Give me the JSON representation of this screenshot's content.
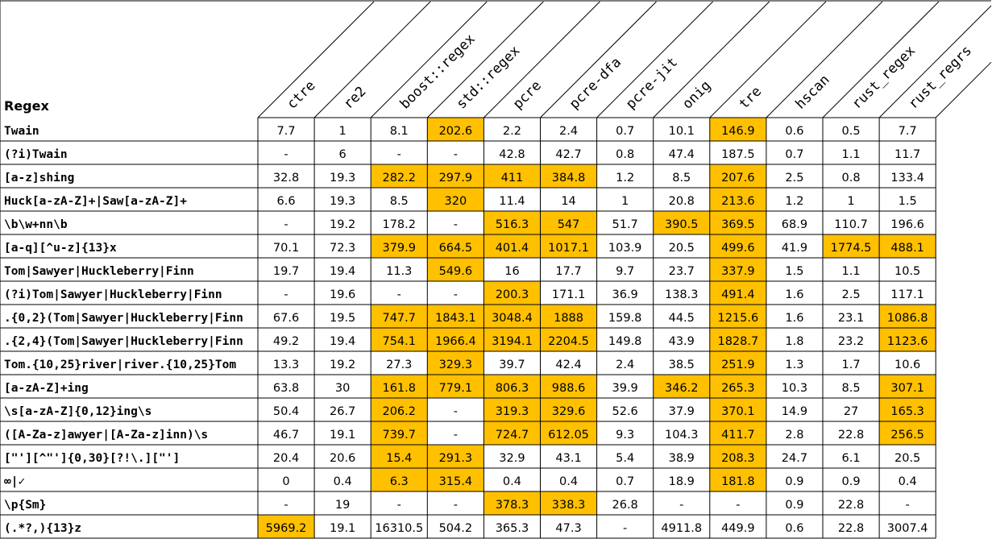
{
  "table": {
    "corner_label": "Regex",
    "columns": [
      "ctre",
      "re2",
      "boost::regex",
      "std::regex",
      "pcre",
      "pcre-dfa",
      "pcre-jit",
      "onig",
      "tre",
      "hscan",
      "rust_regex",
      "rust_regrs"
    ],
    "highlight_color": "#FFC000",
    "rows": [
      {
        "regex": "Twain",
        "values": [
          "7.7",
          "1",
          "8.1",
          "202.6",
          "2.2",
          "2.4",
          "0.7",
          "10.1",
          "146.9",
          "0.6",
          "0.5",
          "7.7"
        ],
        "highlight": [
          3,
          8
        ]
      },
      {
        "regex": "(?i)Twain",
        "values": [
          "-",
          "6",
          "-",
          "-",
          "42.8",
          "42.7",
          "0.8",
          "47.4",
          "187.5",
          "0.7",
          "1.1",
          "11.7"
        ],
        "highlight": []
      },
      {
        "regex": "[a-z]shing",
        "values": [
          "32.8",
          "19.3",
          "282.2",
          "297.9",
          "411",
          "384.8",
          "1.2",
          "8.5",
          "207.6",
          "2.5",
          "0.8",
          "133.4"
        ],
        "highlight": [
          2,
          3,
          4,
          5,
          8
        ]
      },
      {
        "regex": "Huck[a-zA-Z]+|Saw[a-zA-Z]+",
        "values": [
          "6.6",
          "19.3",
          "8.5",
          "320",
          "11.4",
          "14",
          "1",
          "20.8",
          "213.6",
          "1.2",
          "1",
          "1.5"
        ],
        "highlight": [
          3,
          8
        ]
      },
      {
        "regex": "\\b\\w+nn\\b",
        "values": [
          "-",
          "19.2",
          "178.2",
          "-",
          "516.3",
          "547",
          "51.7",
          "390.5",
          "369.5",
          "68.9",
          "110.7",
          "196.6"
        ],
        "highlight": [
          4,
          5,
          7,
          8
        ]
      },
      {
        "regex": "[a-q][^u-z]{13}x",
        "values": [
          "70.1",
          "72.3",
          "379.9",
          "664.5",
          "401.4",
          "1017.1",
          "103.9",
          "20.5",
          "499.6",
          "41.9",
          "1774.5",
          "488.1"
        ],
        "highlight": [
          2,
          3,
          4,
          5,
          8,
          10,
          11
        ]
      },
      {
        "regex": "Tom|Sawyer|Huckleberry|Finn",
        "values": [
          "19.7",
          "19.4",
          "11.3",
          "549.6",
          "16",
          "17.7",
          "9.7",
          "23.7",
          "337.9",
          "1.5",
          "1.1",
          "10.5"
        ],
        "highlight": [
          3,
          8
        ]
      },
      {
        "regex": "(?i)Tom|Sawyer|Huckleberry|Finn",
        "values": [
          "-",
          "19.6",
          "-",
          "-",
          "200.3",
          "171.1",
          "36.9",
          "138.3",
          "491.4",
          "1.6",
          "2.5",
          "117.1"
        ],
        "highlight": [
          4,
          8
        ]
      },
      {
        "regex": ".{0,2}(Tom|Sawyer|Huckleberry|Finn",
        "values": [
          "67.6",
          "19.5",
          "747.7",
          "1843.1",
          "3048.4",
          "1888",
          "159.8",
          "44.5",
          "1215.6",
          "1.6",
          "23.1",
          "1086.8"
        ],
        "highlight": [
          2,
          3,
          4,
          5,
          8,
          11
        ]
      },
      {
        "regex": ".{2,4}(Tom|Sawyer|Huckleberry|Finn",
        "values": [
          "49.2",
          "19.4",
          "754.1",
          "1966.4",
          "3194.1",
          "2204.5",
          "149.8",
          "43.9",
          "1828.7",
          "1.8",
          "23.2",
          "1123.6"
        ],
        "highlight": [
          2,
          3,
          4,
          5,
          8,
          11
        ]
      },
      {
        "regex": "Tom.{10,25}river|river.{10,25}Tom",
        "values": [
          "13.3",
          "19.2",
          "27.3",
          "329.3",
          "39.7",
          "42.4",
          "2.4",
          "38.5",
          "251.9",
          "1.3",
          "1.7",
          "10.6"
        ],
        "highlight": [
          3,
          8
        ]
      },
      {
        "regex": "[a-zA-Z]+ing",
        "values": [
          "63.8",
          "30",
          "161.8",
          "779.1",
          "806.3",
          "988.6",
          "39.9",
          "346.2",
          "265.3",
          "10.3",
          "8.5",
          "307.1"
        ],
        "highlight": [
          2,
          3,
          4,
          5,
          7,
          8,
          11
        ]
      },
      {
        "regex": "\\s[a-zA-Z]{0,12}ing\\s",
        "values": [
          "50.4",
          "26.7",
          "206.2",
          "-",
          "319.3",
          "329.6",
          "52.6",
          "37.9",
          "370.1",
          "14.9",
          "27",
          "165.3"
        ],
        "highlight": [
          2,
          4,
          5,
          8,
          11
        ]
      },
      {
        "regex": "([A-Za-z]awyer|[A-Za-z]inn)\\s",
        "values": [
          "46.7",
          "19.1",
          "739.7",
          "-",
          "724.7",
          "612.05",
          "9.3",
          "104.3",
          "411.7",
          "2.8",
          "22.8",
          "256.5"
        ],
        "highlight": [
          2,
          4,
          5,
          8,
          11
        ]
      },
      {
        "regex": "[\"'][^\"']{0,30}[?!\\.][\"']",
        "values": [
          "20.4",
          "20.6",
          "15.4",
          "291.3",
          "32.9",
          "43.1",
          "5.4",
          "38.9",
          "208.3",
          "24.7",
          "6.1",
          "20.5"
        ],
        "highlight": [
          2,
          3,
          8
        ]
      },
      {
        "regex": "∞|✓",
        "values": [
          "0",
          "0.4",
          "6.3",
          "315.4",
          "0.4",
          "0.4",
          "0.7",
          "18.9",
          "181.8",
          "0.9",
          "0.9",
          "0.4"
        ],
        "highlight": [
          2,
          3,
          8
        ]
      },
      {
        "regex": "\\p{Sm}",
        "values": [
          "-",
          "19",
          "-",
          "-",
          "378.3",
          "338.3",
          "26.8",
          "-",
          "-",
          "0.9",
          "22.8",
          "-"
        ],
        "highlight": [
          4,
          5
        ]
      },
      {
        "regex": "(.*?,){13}z",
        "values": [
          "5969.2",
          "19.1",
          "16310.5",
          "504.2",
          "365.3",
          "47.3",
          "-",
          "4911.8",
          "449.9",
          "0.6",
          "22.8",
          "3007.4"
        ],
        "highlight": [
          0
        ]
      }
    ]
  }
}
